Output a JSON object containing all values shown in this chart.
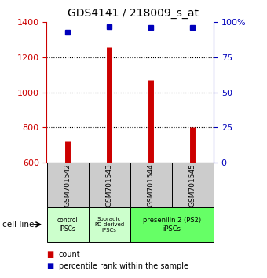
{
  "title": "GDS4141 / 218009_s_at",
  "samples": [
    "GSM701542",
    "GSM701543",
    "GSM701544",
    "GSM701545"
  ],
  "counts": [
    720,
    1258,
    1070,
    800
  ],
  "percentiles": [
    93,
    97,
    96,
    96
  ],
  "ylim_left": [
    600,
    1400
  ],
  "ylim_right": [
    0,
    100
  ],
  "yticks_left": [
    600,
    800,
    1000,
    1200,
    1400
  ],
  "yticks_right": [
    0,
    25,
    50,
    75,
    100
  ],
  "yticklabels_right": [
    "0",
    "25",
    "50",
    "75",
    "100%"
  ],
  "bar_color": "#cc0000",
  "dot_color": "#0000bb",
  "left_axis_color": "#cc0000",
  "right_axis_color": "#0000bb",
  "sample_box_color": "#cccccc",
  "group1_color": "#ccffcc",
  "group2_color": "#ccffcc",
  "group3_color": "#66ff66",
  "group1_label": "control\nIPSCs",
  "group2_label": "Sporadic\nPD-derived\niPSCs",
  "group3_label": "presenilin 2 (PS2)\niPSCs",
  "legend_label1": "count",
  "legend_label2": "percentile rank within the sample",
  "cell_line_label": "cell line"
}
